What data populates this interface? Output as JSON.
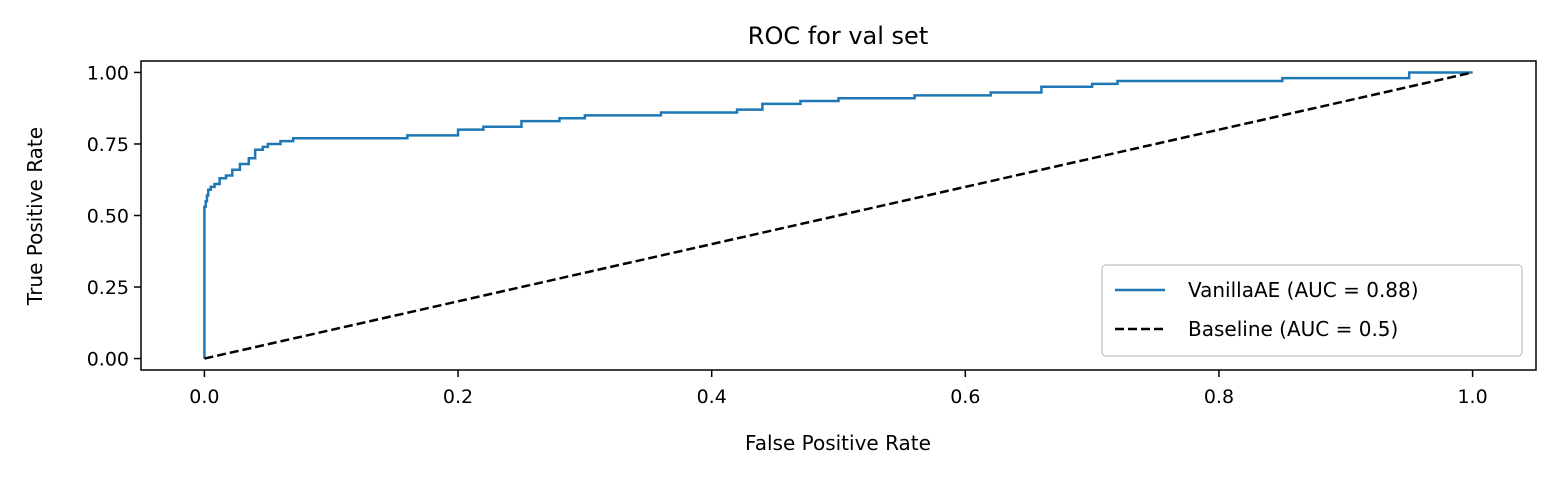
{
  "chart_data": {
    "type": "line",
    "title": "ROC for val set",
    "xlabel": "False Positive Rate",
    "ylabel": "True Positive Rate",
    "xlim": [
      -0.05,
      1.05
    ],
    "ylim": [
      -0.04,
      1.04
    ],
    "xticks": [
      0.0,
      0.2,
      0.4,
      0.6,
      0.8,
      1.0
    ],
    "xtick_labels": [
      "0.0",
      "0.2",
      "0.4",
      "0.6",
      "0.8",
      "1.0"
    ],
    "yticks": [
      0.0,
      0.25,
      0.5,
      0.75,
      1.0
    ],
    "ytick_labels": [
      "0.00",
      "0.25",
      "0.50",
      "0.75",
      "1.00"
    ],
    "grid": false,
    "legend_position": "lower-right",
    "series": [
      {
        "name": "VanillaAE (AUC = 0.88)",
        "color": "#1f77b4",
        "style": "solid",
        "x": [
          0.0,
          0.0,
          0.001,
          0.002,
          0.003,
          0.005,
          0.008,
          0.012,
          0.017,
          0.022,
          0.028,
          0.035,
          0.04,
          0.046,
          0.05,
          0.06,
          0.07,
          0.08,
          0.09,
          0.1,
          0.12,
          0.14,
          0.16,
          0.17,
          0.2,
          0.22,
          0.25,
          0.28,
          0.3,
          0.33,
          0.36,
          0.4,
          0.42,
          0.44,
          0.47,
          0.5,
          0.52,
          0.56,
          0.6,
          0.62,
          0.66,
          0.7,
          0.72,
          0.76,
          0.8,
          0.85,
          0.9,
          0.95,
          0.97,
          1.0
        ],
        "y": [
          0.0,
          0.51,
          0.53,
          0.55,
          0.57,
          0.59,
          0.6,
          0.61,
          0.63,
          0.64,
          0.66,
          0.68,
          0.7,
          0.73,
          0.74,
          0.75,
          0.76,
          0.77,
          0.77,
          0.77,
          0.77,
          0.77,
          0.77,
          0.78,
          0.78,
          0.8,
          0.81,
          0.83,
          0.84,
          0.85,
          0.85,
          0.86,
          0.86,
          0.87,
          0.89,
          0.9,
          0.91,
          0.91,
          0.92,
          0.92,
          0.93,
          0.95,
          0.96,
          0.97,
          0.97,
          0.97,
          0.98,
          0.98,
          1.0,
          1.0
        ]
      },
      {
        "name": "Baseline (AUC = 0.5)",
        "color": "#000000",
        "style": "dashed",
        "x": [
          0.0,
          1.0
        ],
        "y": [
          0.0,
          1.0
        ]
      }
    ]
  }
}
